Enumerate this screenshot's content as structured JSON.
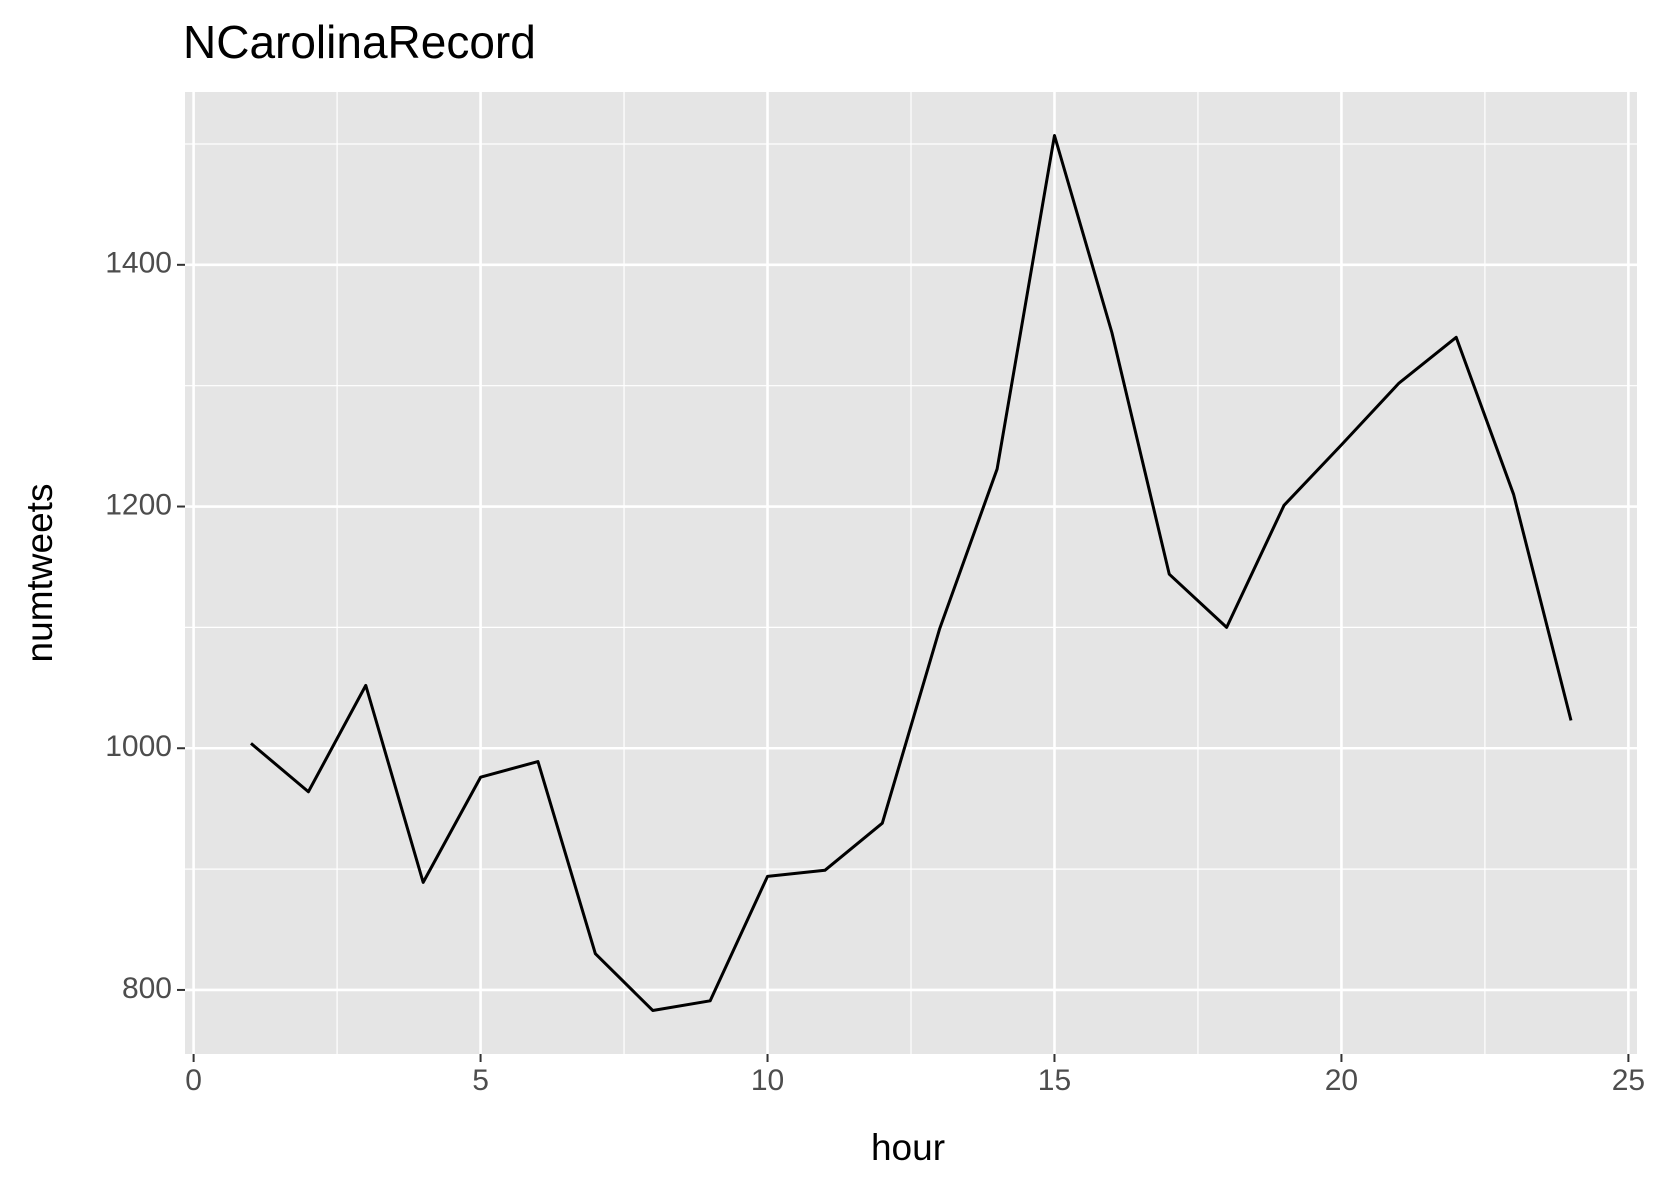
{
  "chart_data": {
    "type": "line",
    "title": "NCarolinaRecord",
    "x_label": "hour",
    "y_label": "numtweets",
    "x": [
      1,
      2,
      3,
      4,
      5,
      6,
      7,
      8,
      9,
      10,
      11,
      12,
      13,
      14,
      15,
      16,
      17,
      18,
      19,
      20,
      21,
      22,
      23,
      24
    ],
    "series": [
      {
        "name": "numtweets",
        "color": "#000000",
        "values": [
          1004,
          964,
          1052,
          889,
          976,
          989,
          830,
          783,
          791,
          894,
          899,
          938,
          1099,
          1231,
          1507,
          1344,
          1144,
          1100,
          1201,
          1251,
          1302,
          1340,
          1210,
          1023
        ]
      }
    ],
    "xlim": [
      -0.15,
      25.15
    ],
    "xticks": [
      0,
      5,
      10,
      15,
      20,
      25
    ],
    "ylim": [
      747,
      1543
    ],
    "yticks": [
      800,
      1000,
      1200,
      1400
    ],
    "grid": true
  }
}
